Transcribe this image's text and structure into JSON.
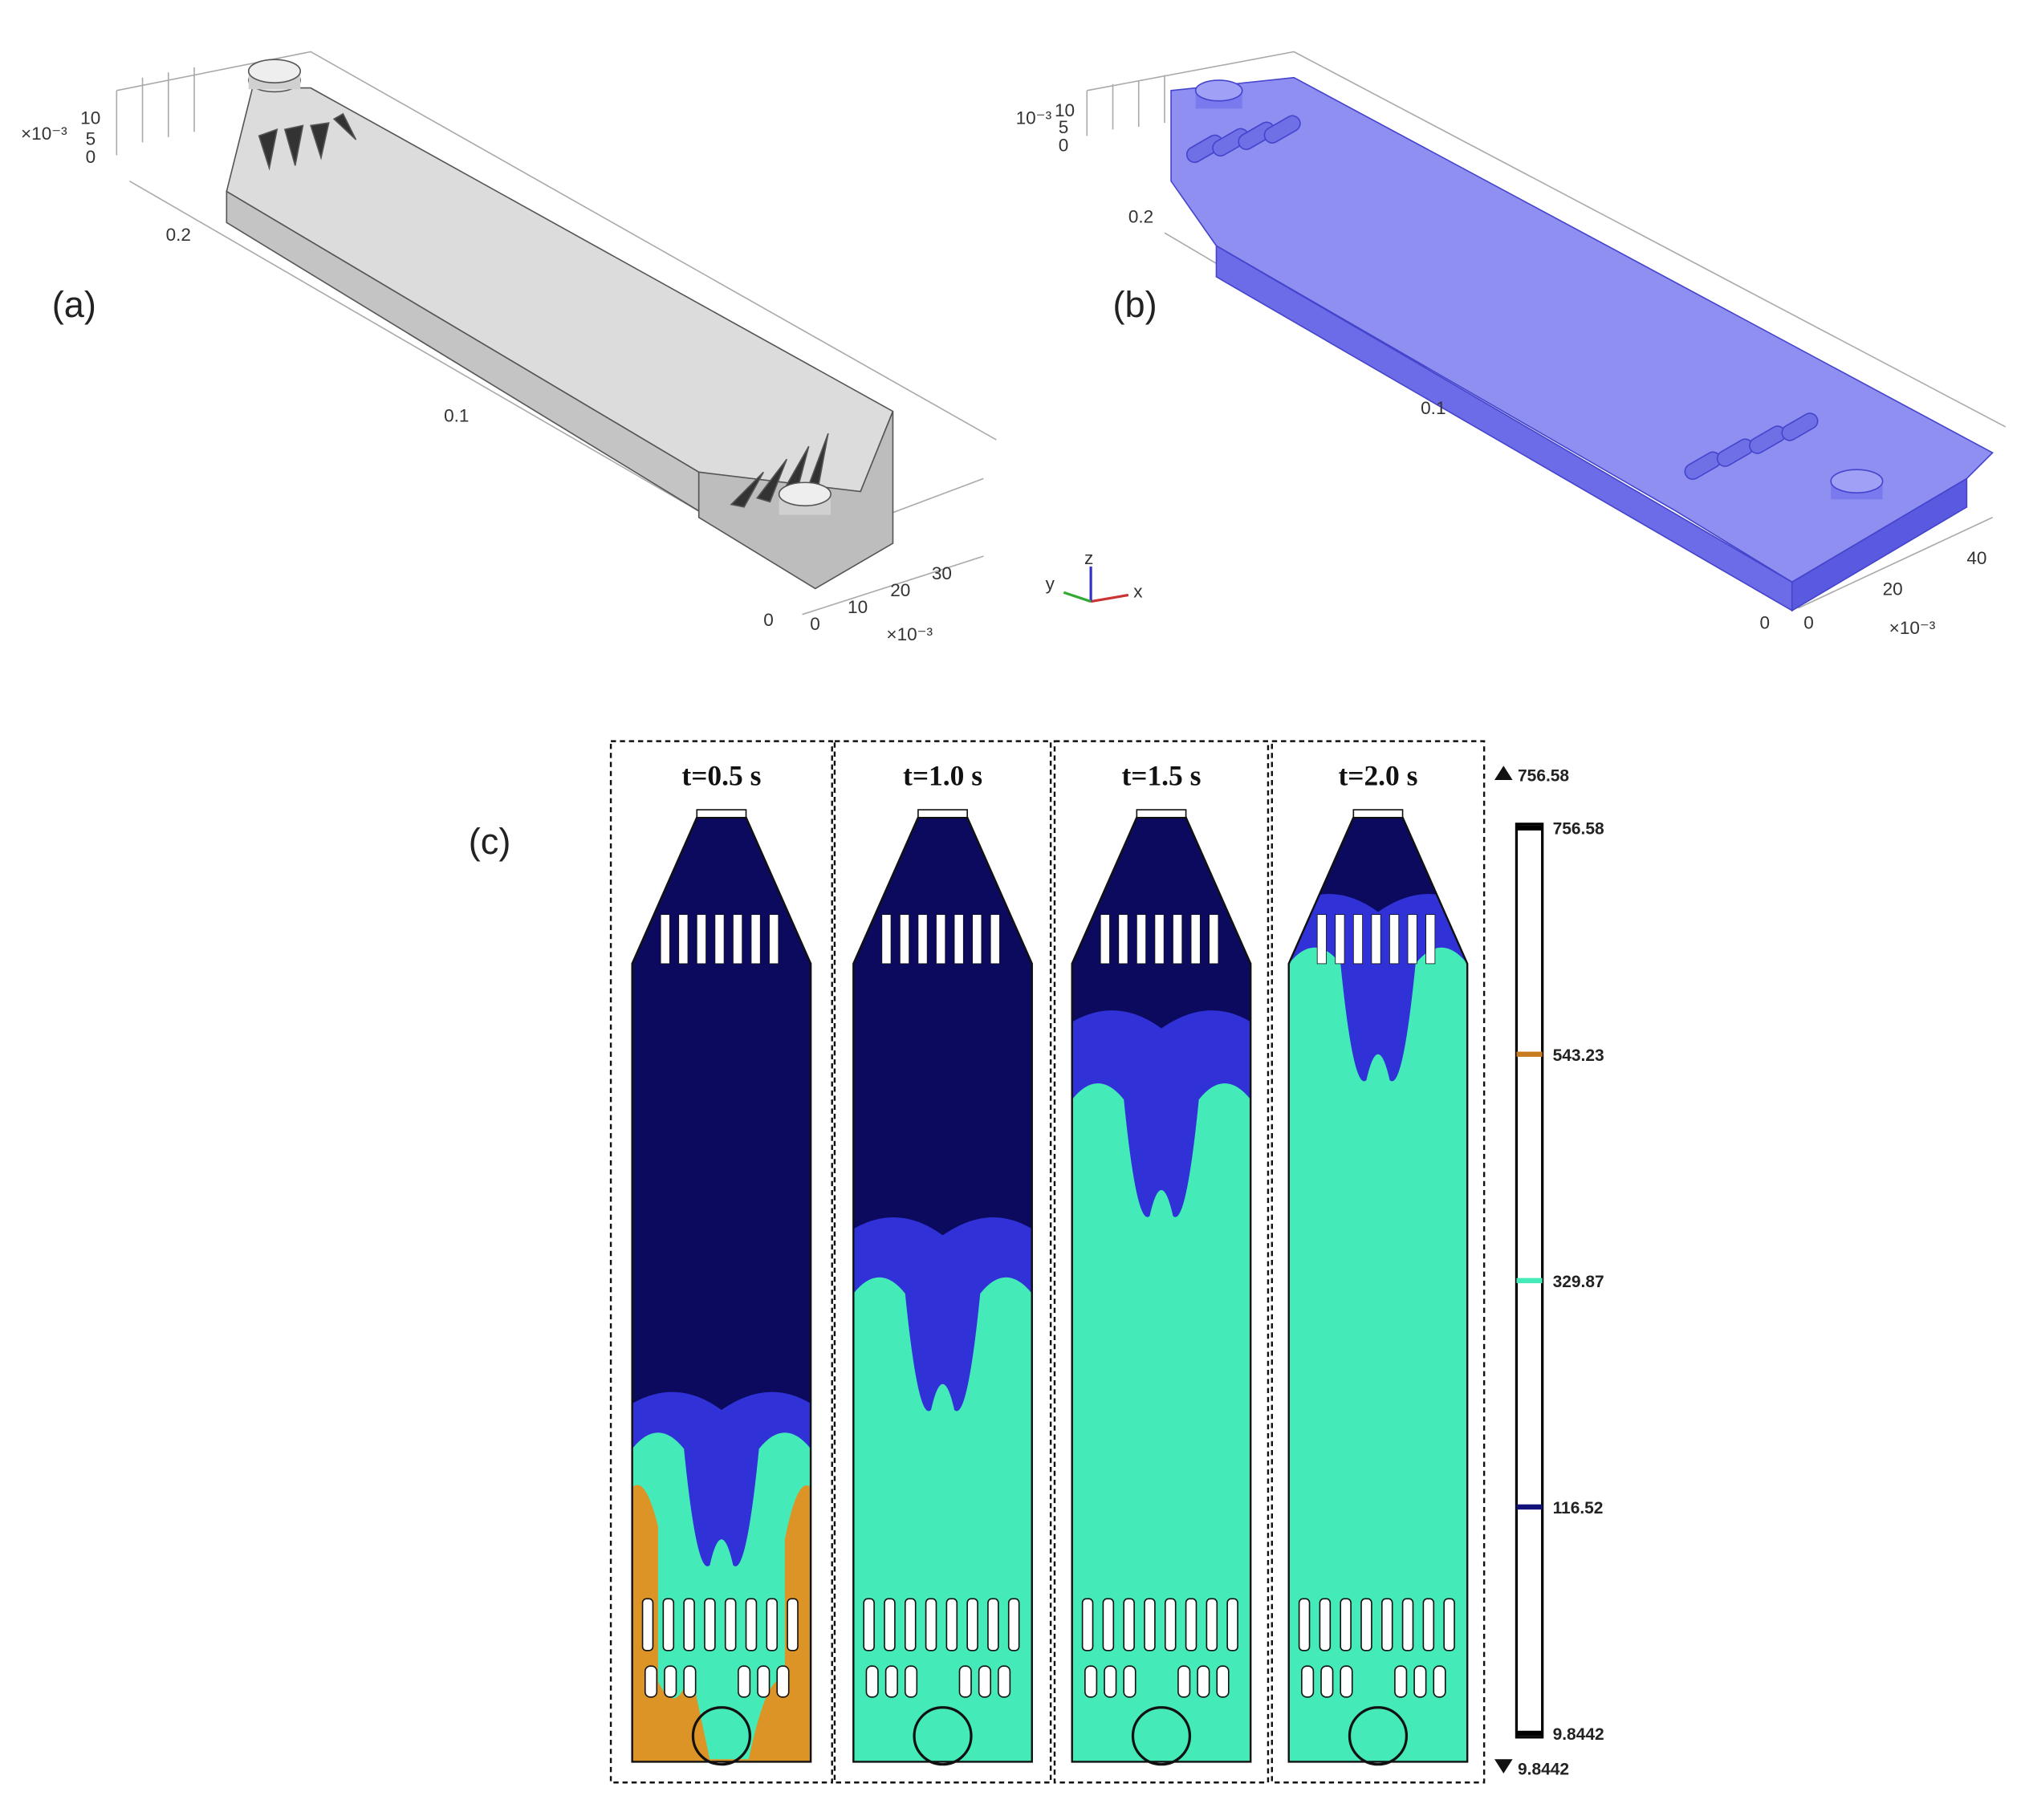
{
  "panel_a": {
    "label": "(a)",
    "axis_labels": [
      "×10⁻³",
      "10",
      "5",
      "0",
      "0.2",
      "0.1",
      "0",
      "0",
      "10",
      "20",
      "30",
      "×10⁻³"
    ]
  },
  "panel_b": {
    "label": "(b)",
    "axis_labels": [
      "10⁻³",
      "10",
      "5",
      "0",
      "0.2",
      "0.1",
      "0",
      "0",
      "20",
      "40",
      "×10⁻³"
    ]
  },
  "triad": [
    "x",
    "y",
    "z"
  ],
  "panel_c": {
    "label": "(c)",
    "times": [
      "t=0.5 s",
      "t=1.0 s",
      "t=1.5 s",
      "t=2.0 s"
    ],
    "colorbar": {
      "max": "756.58",
      "min": "9.8442",
      "ticks": [
        "756.58",
        "543.23",
        "329.87",
        "116.52",
        "9.8442"
      ]
    }
  }
}
